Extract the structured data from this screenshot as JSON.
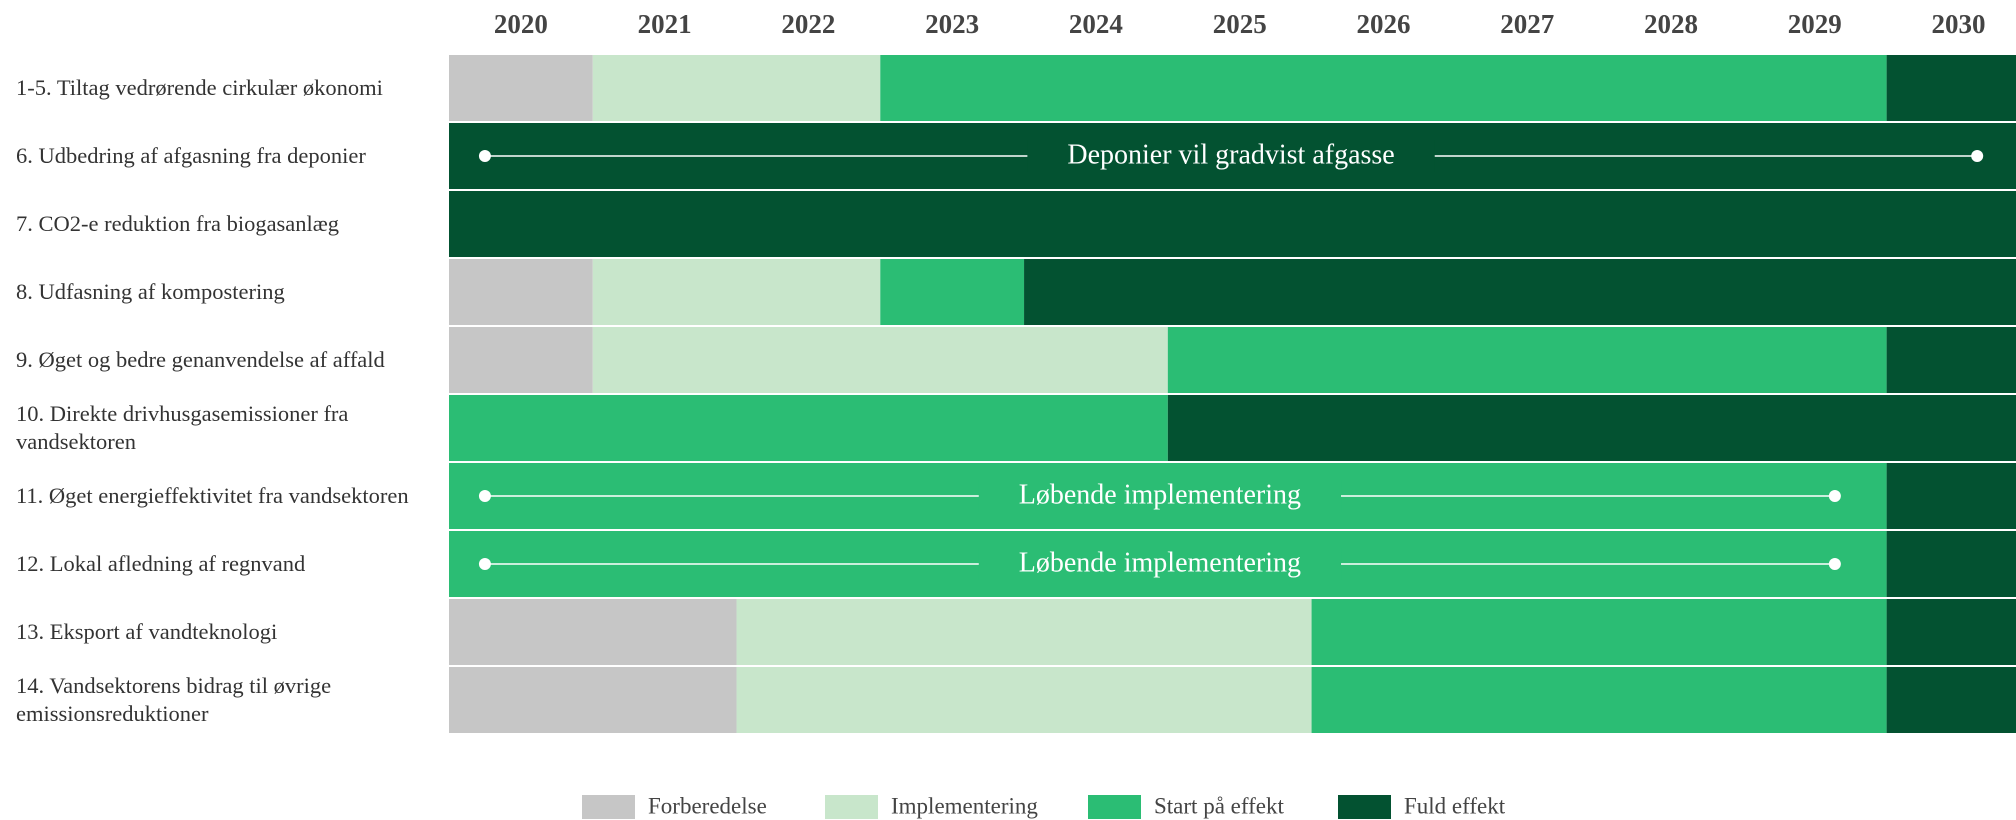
{
  "chart_data": {
    "type": "gantt",
    "categories": [
      "2020",
      "2021",
      "2022",
      "2023",
      "2024",
      "2025",
      "2026",
      "2027",
      "2028",
      "2029",
      "2030"
    ],
    "xlim": [
      2020,
      2030.9
    ],
    "phases": [
      {
        "name": "Forberedelse",
        "color": "#c6c6c6"
      },
      {
        "name": "Implementering",
        "color": "#c8e6cb"
      },
      {
        "name": "Start på effekt",
        "color": "#2bbd74"
      },
      {
        "name": "Fuld effekt",
        "color": "#035231"
      }
    ],
    "rows": [
      {
        "label": "1-5. Tiltag vedrørende cirkulær økonomi",
        "segments": [
          {
            "phase": "Forberedelse",
            "start": 2020,
            "end": 2021
          },
          {
            "phase": "Implementering",
            "start": 2021,
            "end": 2023
          },
          {
            "phase": "Start på effekt",
            "start": 2023,
            "end": 2030
          },
          {
            "phase": "Fuld effekt",
            "start": 2030,
            "end": 2030.9
          }
        ]
      },
      {
        "label": "6. Udbedring af afgasning fra deponier",
        "segments": [
          {
            "phase": "Fuld effekt",
            "start": 2020,
            "end": 2030.9
          }
        ],
        "annotation": {
          "text": "Deponier vil gradvist afgasse",
          "start": 2020.25,
          "end": 2030.63
        }
      },
      {
        "label": "7. CO2-e reduktion fra biogasanlæg",
        "segments": [
          {
            "phase": "Fuld effekt",
            "start": 2020,
            "end": 2030.9
          }
        ]
      },
      {
        "label": "8. Udfasning af kompostering",
        "segments": [
          {
            "phase": "Forberedelse",
            "start": 2020,
            "end": 2021
          },
          {
            "phase": "Implementering",
            "start": 2021,
            "end": 2023
          },
          {
            "phase": "Start på effekt",
            "start": 2023,
            "end": 2024
          },
          {
            "phase": "Fuld effekt",
            "start": 2024,
            "end": 2030.9
          }
        ]
      },
      {
        "label": "9. Øget og bedre genanvendelse af affald",
        "segments": [
          {
            "phase": "Forberedelse",
            "start": 2020,
            "end": 2021
          },
          {
            "phase": "Implementering",
            "start": 2021,
            "end": 2025
          },
          {
            "phase": "Start på effekt",
            "start": 2025,
            "end": 2030
          },
          {
            "phase": "Fuld effekt",
            "start": 2030,
            "end": 2030.9
          }
        ]
      },
      {
        "label": "10. Direkte drivhusgasemissioner fra vandsektoren",
        "segments": [
          {
            "phase": "Start på effekt",
            "start": 2020,
            "end": 2025
          },
          {
            "phase": "Fuld effekt",
            "start": 2025,
            "end": 2030.9
          }
        ]
      },
      {
        "label": "11. Øget energieffektivitet fra vandsektoren",
        "segments": [
          {
            "phase": "Start på effekt",
            "start": 2020,
            "end": 2030
          },
          {
            "phase": "Fuld effekt",
            "start": 2030,
            "end": 2030.9
          }
        ],
        "annotation": {
          "text": "Løbende implementering",
          "start": 2020.25,
          "end": 2029.64
        }
      },
      {
        "label": "12. Lokal afledning af regnvand",
        "segments": [
          {
            "phase": "Start på effekt",
            "start": 2020,
            "end": 2030
          },
          {
            "phase": "Fuld effekt",
            "start": 2030,
            "end": 2030.9
          }
        ],
        "annotation": {
          "text": "Løbende implementering",
          "start": 2020.25,
          "end": 2029.64
        }
      },
      {
        "label": "13. Eksport af vandteknologi",
        "segments": [
          {
            "phase": "Forberedelse",
            "start": 2020,
            "end": 2022
          },
          {
            "phase": "Implementering",
            "start": 2022,
            "end": 2026
          },
          {
            "phase": "Start på effekt",
            "start": 2026,
            "end": 2030
          },
          {
            "phase": "Fuld effekt",
            "start": 2030,
            "end": 2030.9
          }
        ]
      },
      {
        "label": "14. Vandsektorens bidrag til øvrige emissionsreduktioner",
        "segments": [
          {
            "phase": "Forberedelse",
            "start": 2020,
            "end": 2022
          },
          {
            "phase": "Implementering",
            "start": 2022,
            "end": 2026
          },
          {
            "phase": "Start på effekt",
            "start": 2026,
            "end": 2030
          },
          {
            "phase": "Fuld effekt",
            "start": 2030,
            "end": 2030.9
          }
        ]
      }
    ]
  }
}
